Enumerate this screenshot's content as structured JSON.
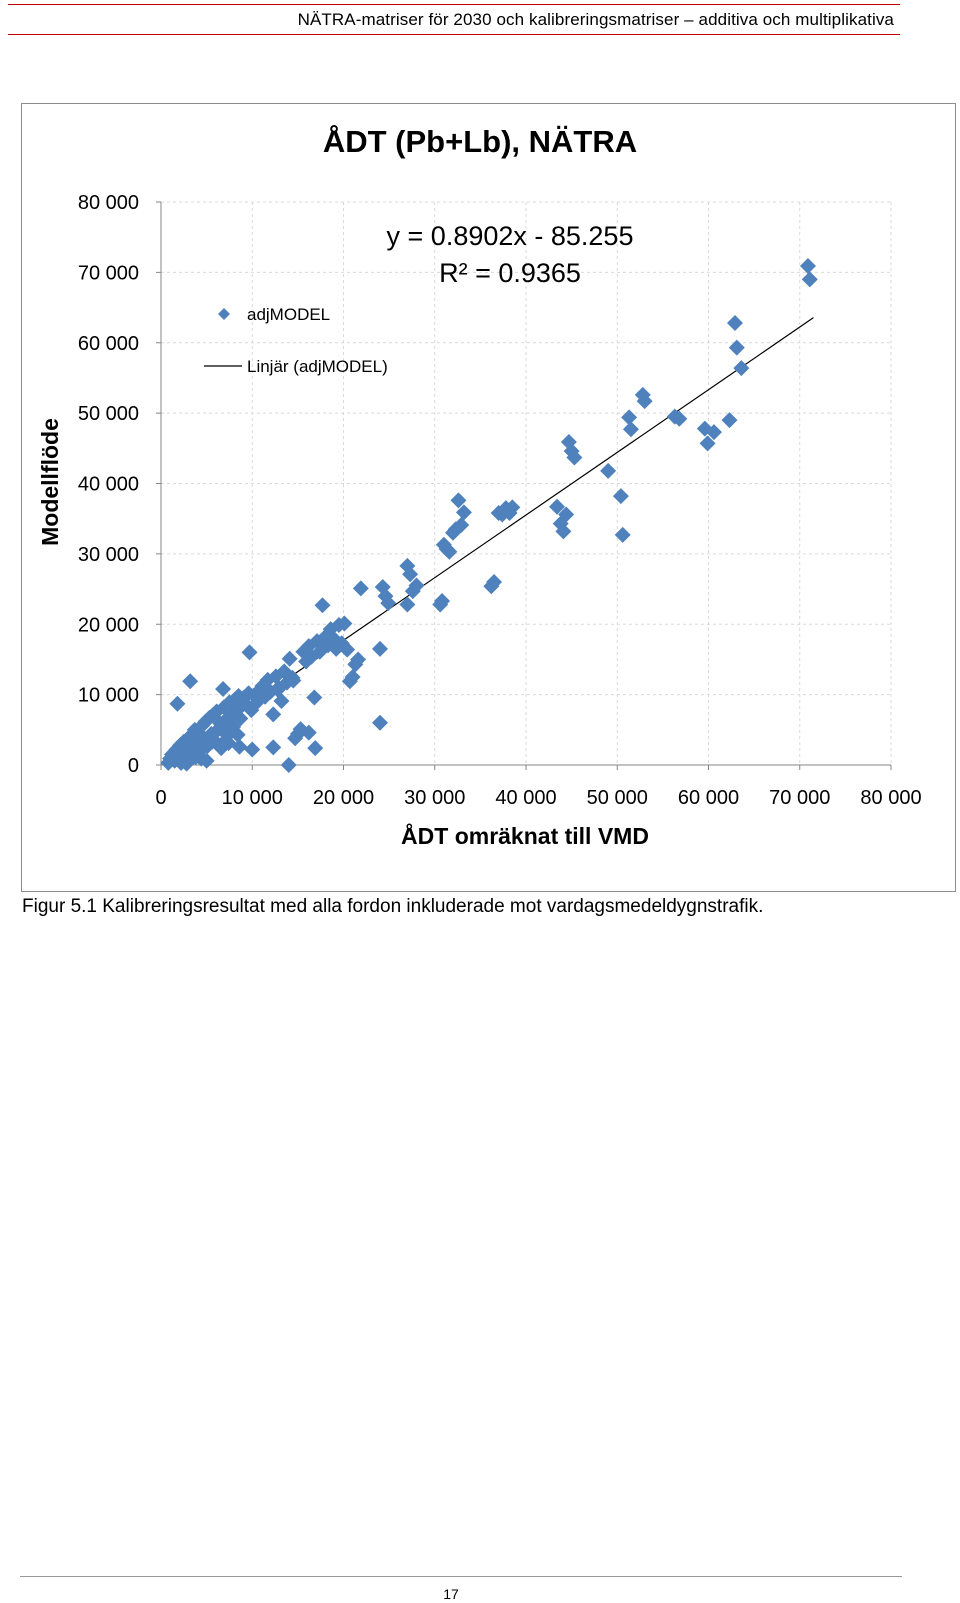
{
  "header": {
    "running_title": "NÄTRA-matriser för 2030 och kalibreringsmatriser – additiva och multiplikativa"
  },
  "caption": "Figur 5.1 Kalibreringsresultat med alla fordon inkluderade mot vardagsmedeldygnstrafik.",
  "page_number": "17",
  "colors": {
    "marker": "#4f81bd",
    "trendline": "#000000",
    "grid": "#d9d9d9",
    "rule": "#c00000"
  },
  "chart_data": {
    "type": "scatter",
    "title": "ÅDT (Pb+Lb), NÄTRA",
    "xlabel": "ÅDT omräknat till VMD",
    "ylabel": "Modellflöde",
    "xlim": [
      0,
      80000
    ],
    "ylim": [
      0,
      80000
    ],
    "x_ticks": [
      0,
      10000,
      20000,
      30000,
      40000,
      50000,
      60000,
      70000,
      80000
    ],
    "y_ticks": [
      0,
      10000,
      20000,
      30000,
      40000,
      50000,
      60000,
      70000,
      80000
    ],
    "x_tick_labels": [
      "0",
      "10 000",
      "20 000",
      "30 000",
      "40 000",
      "50 000",
      "60 000",
      "70 000",
      "80 000"
    ],
    "y_tick_labels": [
      "0",
      "10 000",
      "20 000",
      "30 000",
      "40 000",
      "50 000",
      "60 000",
      "70 000",
      "80 000"
    ],
    "grid": true,
    "legend": {
      "position": "top-left",
      "entries": [
        "adjMODEL",
        "Linjär (adjMODEL)"
      ]
    },
    "equation": "y = 0.8902x - 85.255",
    "r_squared": "R² = 0.9365",
    "trendline": {
      "slope": 0.8902,
      "intercept": -85.255,
      "x_range": [
        500,
        71500
      ]
    },
    "series": [
      {
        "name": "adjMODEL",
        "marker": "diamond",
        "points": [
          [
            800,
            300
          ],
          [
            1000,
            900
          ],
          [
            1200,
            1500
          ],
          [
            1500,
            600
          ],
          [
            1700,
            2200
          ],
          [
            1900,
            1200
          ],
          [
            2100,
            2800
          ],
          [
            2300,
            1900
          ],
          [
            2500,
            3300
          ],
          [
            2700,
            800
          ],
          [
            2900,
            3700
          ],
          [
            3100,
            2500
          ],
          [
            3300,
            4200
          ],
          [
            3500,
            1500
          ],
          [
            3700,
            5000
          ],
          [
            3900,
            3200
          ],
          [
            4100,
            4600
          ],
          [
            4300,
            2000
          ],
          [
            4500,
            5600
          ],
          [
            4700,
            3800
          ],
          [
            4900,
            6200
          ],
          [
            5100,
            2700
          ],
          [
            5300,
            6700
          ],
          [
            5500,
            4400
          ],
          [
            5700,
            7100
          ],
          [
            5900,
            3400
          ],
          [
            6100,
            7600
          ],
          [
            6300,
            5100
          ],
          [
            6500,
            5900
          ],
          [
            6700,
            3000
          ],
          [
            6900,
            8200
          ],
          [
            7100,
            6400
          ],
          [
            7300,
            4200
          ],
          [
            7500,
            8900
          ],
          [
            7700,
            7000
          ],
          [
            7900,
            5400
          ],
          [
            8100,
            9300
          ],
          [
            8300,
            7700
          ],
          [
            8500,
            9800
          ],
          [
            8700,
            6600
          ],
          [
            9100,
            9600
          ],
          [
            9300,
            8600
          ],
          [
            9600,
            10200
          ],
          [
            9900,
            7800
          ],
          [
            10200,
            9900
          ],
          [
            10500,
            8900
          ],
          [
            10800,
            10600
          ],
          [
            11100,
            11200
          ],
          [
            11400,
            9700
          ],
          [
            11700,
            12100
          ],
          [
            12000,
            10400
          ],
          [
            12300,
            7200
          ],
          [
            12600,
            12600
          ],
          [
            12900,
            11000
          ],
          [
            13200,
            9100
          ],
          [
            13500,
            13300
          ],
          [
            13800,
            11700
          ],
          [
            14100,
            15100
          ],
          [
            14400,
            12400
          ],
          [
            14700,
            3800
          ],
          [
            15000,
            4400
          ],
          [
            15300,
            5100
          ],
          [
            15600,
            16100
          ],
          [
            15900,
            14700
          ],
          [
            16200,
            16900
          ],
          [
            16500,
            15400
          ],
          [
            16800,
            9600
          ],
          [
            17100,
            17600
          ],
          [
            17400,
            16100
          ],
          [
            17700,
            22700
          ],
          [
            18000,
            18200
          ],
          [
            18300,
            17000
          ],
          [
            18600,
            19300
          ],
          [
            18900,
            18000
          ],
          [
            19200,
            16500
          ],
          [
            19500,
            19900
          ],
          [
            19800,
            17300
          ],
          [
            20100,
            20100
          ],
          [
            20400,
            16400
          ],
          [
            20700,
            11900
          ],
          [
            21000,
            12500
          ],
          [
            21300,
            14300
          ],
          [
            21600,
            15000
          ],
          [
            21900,
            25100
          ],
          [
            24000,
            16500
          ],
          [
            24300,
            25300
          ],
          [
            24600,
            24000
          ],
          [
            24900,
            23000
          ],
          [
            27000,
            28300
          ],
          [
            27300,
            27100
          ],
          [
            27600,
            24700
          ],
          [
            27000,
            22800
          ],
          [
            28000,
            25500
          ],
          [
            30600,
            22800
          ],
          [
            30800,
            23300
          ],
          [
            31000,
            31300
          ],
          [
            31300,
            30700
          ],
          [
            31600,
            30300
          ],
          [
            32000,
            33000
          ],
          [
            32300,
            33500
          ],
          [
            32600,
            37600
          ],
          [
            32900,
            34100
          ],
          [
            33200,
            35900
          ],
          [
            36200,
            25400
          ],
          [
            36500,
            26000
          ],
          [
            37000,
            35800
          ],
          [
            37400,
            35600
          ],
          [
            37800,
            36500
          ],
          [
            38200,
            35800
          ],
          [
            38500,
            36600
          ],
          [
            43400,
            36700
          ],
          [
            43800,
            34300
          ],
          [
            44100,
            33200
          ],
          [
            44400,
            35600
          ],
          [
            44700,
            45900
          ],
          [
            45000,
            44600
          ],
          [
            45300,
            43700
          ],
          [
            49000,
            41800
          ],
          [
            50400,
            38200
          ],
          [
            50600,
            32700
          ],
          [
            51300,
            49400
          ],
          [
            51500,
            47700
          ],
          [
            52800,
            52600
          ],
          [
            53000,
            51700
          ],
          [
            56300,
            49500
          ],
          [
            56800,
            49200
          ],
          [
            59600,
            47800
          ],
          [
            59900,
            45700
          ],
          [
            60600,
            47300
          ],
          [
            62300,
            49000
          ],
          [
            62900,
            62800
          ],
          [
            63100,
            59300
          ],
          [
            63600,
            56400
          ],
          [
            70900,
            70900
          ],
          [
            71100,
            69000
          ],
          [
            3200,
            11900
          ],
          [
            1800,
            8700
          ],
          [
            6800,
            10800
          ],
          [
            9700,
            16000
          ],
          [
            10000,
            2200
          ],
          [
            12300,
            2500
          ],
          [
            14000,
            0
          ],
          [
            16900,
            2400
          ],
          [
            14500,
            12000
          ],
          [
            12800,
            10700
          ],
          [
            24000,
            6000
          ],
          [
            16200,
            4600
          ],
          [
            8600,
            2600
          ],
          [
            5000,
            600
          ],
          [
            2800,
            200
          ],
          [
            3800,
            1100
          ],
          [
            5600,
            3300
          ],
          [
            6600,
            2400
          ],
          [
            7400,
            3100
          ],
          [
            8400,
            4300
          ],
          [
            7000,
            4600
          ],
          [
            4400,
            900
          ],
          [
            4000,
            2400
          ],
          [
            2200,
            300
          ]
        ]
      }
    ]
  }
}
